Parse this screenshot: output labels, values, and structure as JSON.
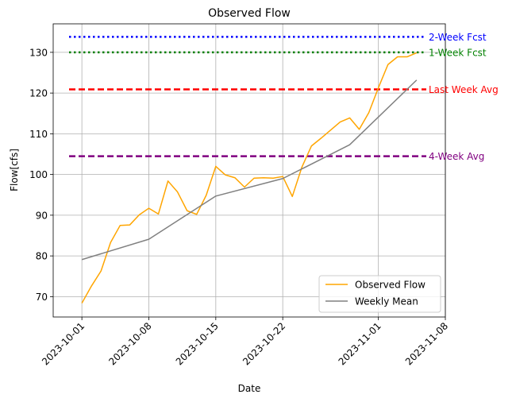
{
  "chart_data": {
    "type": "line",
    "title": "Observed Flow",
    "xlabel": "Date",
    "ylabel": "Flow[cfs]",
    "grid": true,
    "legend_position": "lower-right",
    "xlim": [
      "2023-09-28",
      "2023-11-08"
    ],
    "ylim": [
      65,
      137
    ],
    "x_ticks": [
      "2023-10-01",
      "2023-10-08",
      "2023-10-15",
      "2023-10-22",
      "2023-11-01",
      "2023-11-08"
    ],
    "y_ticks": [
      70,
      80,
      90,
      100,
      110,
      120,
      130
    ],
    "series": [
      {
        "name": "Observed Flow",
        "color": "#ffa500",
        "points": [
          [
            "2023-10-01",
            68.4
          ],
          [
            "2023-10-02",
            72.6
          ],
          [
            "2023-10-03",
            76.3
          ],
          [
            "2023-10-04",
            83.3
          ],
          [
            "2023-10-05",
            87.5
          ],
          [
            "2023-10-06",
            87.6
          ],
          [
            "2023-10-07",
            90.1
          ],
          [
            "2023-10-08",
            91.7
          ],
          [
            "2023-10-09",
            90.3
          ],
          [
            "2023-10-10",
            98.4
          ],
          [
            "2023-10-11",
            95.7
          ],
          [
            "2023-10-12",
            91.1
          ],
          [
            "2023-10-13",
            90.2
          ],
          [
            "2023-10-14",
            94.9
          ],
          [
            "2023-10-15",
            102.0
          ],
          [
            "2023-10-16",
            99.9
          ],
          [
            "2023-10-17",
            99.2
          ],
          [
            "2023-10-18",
            96.9
          ],
          [
            "2023-10-19",
            99.1
          ],
          [
            "2023-10-20",
            99.2
          ],
          [
            "2023-10-21",
            99.1
          ],
          [
            "2023-10-22",
            99.5
          ],
          [
            "2023-10-23",
            94.6
          ],
          [
            "2023-10-24",
            101.8
          ],
          [
            "2023-10-25",
            107.0
          ],
          [
            "2023-10-26",
            108.9
          ],
          [
            "2023-10-27",
            110.9
          ],
          [
            "2023-10-28",
            112.9
          ],
          [
            "2023-10-29",
            113.9
          ],
          [
            "2023-10-30",
            111.1
          ],
          [
            "2023-10-31",
            115.2
          ],
          [
            "2023-11-01",
            121.3
          ],
          [
            "2023-11-02",
            127.0
          ],
          [
            "2023-11-03",
            128.9
          ],
          [
            "2023-11-04",
            128.9
          ],
          [
            "2023-11-05",
            129.9
          ]
        ]
      },
      {
        "name": "Weekly Mean",
        "color": "#808080",
        "points": [
          [
            "2023-10-01",
            79.1
          ],
          [
            "2023-10-08",
            84.1
          ],
          [
            "2023-10-15",
            94.7
          ],
          [
            "2023-10-22",
            99.0
          ],
          [
            "2023-10-29",
            107.3
          ],
          [
            "2023-11-05",
            123.2
          ]
        ]
      }
    ],
    "reference_lines": [
      {
        "label": "2-Week Fcst",
        "value": 133.8,
        "color": "#0000ff",
        "style": "dotted"
      },
      {
        "label": "1-Week Fcst",
        "value": 130.0,
        "color": "#008000",
        "style": "dotted"
      },
      {
        "label": "Last Week Avg",
        "value": 120.9,
        "color": "#ff0000",
        "style": "dashed"
      },
      {
        "label": "4-Week Avg",
        "value": 104.5,
        "color": "#800080",
        "style": "dashed"
      }
    ]
  }
}
